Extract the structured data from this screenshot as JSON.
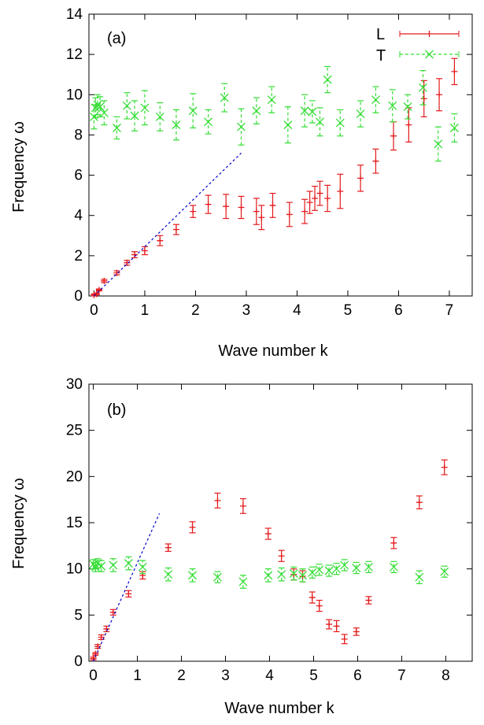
{
  "chart_data": [
    {
      "type": "scatter",
      "panel_label": "(a)",
      "xlabel": "Wave number k",
      "ylabel": "Frequency ω",
      "xlim": [
        -0.1,
        7.45
      ],
      "ylim": [
        0,
        14
      ],
      "xticks": [
        0,
        1,
        2,
        3,
        4,
        5,
        6,
        7
      ],
      "yticks": [
        0,
        2,
        4,
        6,
        8,
        10,
        12,
        14
      ],
      "grid": false,
      "legend_position": "top-right",
      "series": [
        {
          "name": "L",
          "color": "#e41a1c",
          "marker": "plus",
          "errorbars": true,
          "points": [
            {
              "x": 0.0,
              "y": 0.05,
              "err": 0.05
            },
            {
              "x": 0.05,
              "y": 0.1,
              "err": 0.05
            },
            {
              "x": 0.1,
              "y": 0.3,
              "err": 0.05
            },
            {
              "x": 0.2,
              "y": 0.75,
              "err": 0.08
            },
            {
              "x": 0.45,
              "y": 1.15,
              "err": 0.1
            },
            {
              "x": 0.65,
              "y": 1.65,
              "err": 0.12
            },
            {
              "x": 0.8,
              "y": 2.05,
              "err": 0.15
            },
            {
              "x": 1.0,
              "y": 2.25,
              "err": 0.2
            },
            {
              "x": 1.3,
              "y": 2.75,
              "err": 0.25
            },
            {
              "x": 1.62,
              "y": 3.3,
              "err": 0.25
            },
            {
              "x": 1.95,
              "y": 4.2,
              "err": 0.3
            },
            {
              "x": 2.25,
              "y": 4.55,
              "err": 0.45
            },
            {
              "x": 2.6,
              "y": 4.45,
              "err": 0.6
            },
            {
              "x": 2.9,
              "y": 4.4,
              "err": 0.55
            },
            {
              "x": 3.2,
              "y": 4.2,
              "err": 0.65
            },
            {
              "x": 3.3,
              "y": 3.9,
              "err": 0.6
            },
            {
              "x": 3.52,
              "y": 4.5,
              "err": 0.6
            },
            {
              "x": 3.85,
              "y": 4.05,
              "err": 0.6
            },
            {
              "x": 4.15,
              "y": 4.2,
              "err": 0.6
            },
            {
              "x": 4.25,
              "y": 4.65,
              "err": 0.55
            },
            {
              "x": 4.35,
              "y": 4.85,
              "err": 0.6
            },
            {
              "x": 4.45,
              "y": 5.1,
              "err": 0.6
            },
            {
              "x": 4.6,
              "y": 4.85,
              "err": 0.65
            },
            {
              "x": 4.85,
              "y": 5.2,
              "err": 0.85
            },
            {
              "x": 5.25,
              "y": 5.85,
              "err": 0.65
            },
            {
              "x": 5.55,
              "y": 6.7,
              "err": 0.6
            },
            {
              "x": 5.9,
              "y": 7.95,
              "err": 0.7
            },
            {
              "x": 6.2,
              "y": 8.5,
              "err": 0.85
            },
            {
              "x": 6.5,
              "y": 9.8,
              "err": 0.9
            },
            {
              "x": 6.8,
              "y": 10.0,
              "err": 0.8
            },
            {
              "x": 7.1,
              "y": 11.15,
              "err": 0.65
            }
          ]
        },
        {
          "name": "T",
          "color": "#33dd33",
          "marker": "cross",
          "errorbars": true,
          "points": [
            {
              "x": 0.0,
              "y": 8.9,
              "err": 0.6
            },
            {
              "x": 0.03,
              "y": 9.35,
              "err": 0.5
            },
            {
              "x": 0.07,
              "y": 9.5,
              "err": 0.5
            },
            {
              "x": 0.12,
              "y": 9.4,
              "err": 0.5
            },
            {
              "x": 0.2,
              "y": 9.1,
              "err": 0.6
            },
            {
              "x": 0.45,
              "y": 8.35,
              "err": 0.55
            },
            {
              "x": 0.65,
              "y": 9.45,
              "err": 0.65
            },
            {
              "x": 0.8,
              "y": 8.95,
              "err": 0.75
            },
            {
              "x": 1.0,
              "y": 9.35,
              "err": 0.85
            },
            {
              "x": 1.3,
              "y": 8.9,
              "err": 0.7
            },
            {
              "x": 1.62,
              "y": 8.5,
              "err": 0.75
            },
            {
              "x": 1.95,
              "y": 9.2,
              "err": 0.85
            },
            {
              "x": 2.25,
              "y": 8.65,
              "err": 0.6
            },
            {
              "x": 2.57,
              "y": 9.85,
              "err": 0.7
            },
            {
              "x": 2.9,
              "y": 8.4,
              "err": 0.9
            },
            {
              "x": 3.2,
              "y": 9.2,
              "err": 0.65
            },
            {
              "x": 3.5,
              "y": 9.75,
              "err": 0.65
            },
            {
              "x": 3.82,
              "y": 8.5,
              "err": 0.9
            },
            {
              "x": 4.15,
              "y": 9.2,
              "err": 0.8
            },
            {
              "x": 4.3,
              "y": 9.15,
              "err": 0.55
            },
            {
              "x": 4.45,
              "y": 8.65,
              "err": 0.7
            },
            {
              "x": 4.6,
              "y": 10.75,
              "err": 0.65
            },
            {
              "x": 4.85,
              "y": 8.6,
              "err": 0.65
            },
            {
              "x": 5.25,
              "y": 9.05,
              "err": 0.65
            },
            {
              "x": 5.55,
              "y": 9.75,
              "err": 0.65
            },
            {
              "x": 5.88,
              "y": 9.45,
              "err": 0.8
            },
            {
              "x": 6.18,
              "y": 9.4,
              "err": 0.6
            },
            {
              "x": 6.48,
              "y": 10.35,
              "err": 0.85
            },
            {
              "x": 6.78,
              "y": 7.55,
              "err": 0.85
            },
            {
              "x": 7.1,
              "y": 8.35,
              "err": 0.7
            }
          ]
        },
        {
          "color": "#0000cc",
          "type": "dashed-line",
          "points": [
            {
              "x": 0.0,
              "y": 0.0
            },
            {
              "x": 2.9,
              "y": 7.1
            }
          ]
        }
      ]
    },
    {
      "type": "scatter",
      "panel_label": "(b)",
      "xlabel": "Wave number k",
      "ylabel": "Frequency ω",
      "xlim": [
        -0.1,
        8.6
      ],
      "ylim": [
        0,
        30
      ],
      "xticks": [
        0,
        1,
        2,
        3,
        4,
        5,
        6,
        7,
        8
      ],
      "yticks": [
        0,
        5,
        10,
        15,
        20,
        25,
        30
      ],
      "grid": false,
      "series": [
        {
          "name": "L",
          "color": "#e41a1c",
          "marker": "plus",
          "errorbars": true,
          "points": [
            {
              "x": 0.0,
              "y": 0.3,
              "err": 0.15
            },
            {
              "x": 0.05,
              "y": 0.8,
              "err": 0.15
            },
            {
              "x": 0.1,
              "y": 1.6,
              "err": 0.2
            },
            {
              "x": 0.18,
              "y": 2.6,
              "err": 0.25
            },
            {
              "x": 0.3,
              "y": 3.5,
              "err": 0.3
            },
            {
              "x": 0.45,
              "y": 5.3,
              "err": 0.3
            },
            {
              "x": 0.8,
              "y": 7.3,
              "err": 0.35
            },
            {
              "x": 1.12,
              "y": 9.3,
              "err": 0.4
            },
            {
              "x": 1.7,
              "y": 12.3,
              "err": 0.4
            },
            {
              "x": 2.25,
              "y": 14.5,
              "err": 0.6
            },
            {
              "x": 2.82,
              "y": 17.4,
              "err": 0.8
            },
            {
              "x": 3.4,
              "y": 16.8,
              "err": 0.8
            },
            {
              "x": 3.97,
              "y": 13.8,
              "err": 0.6
            },
            {
              "x": 4.27,
              "y": 11.4,
              "err": 0.6
            },
            {
              "x": 4.55,
              "y": 9.4,
              "err": 0.6
            },
            {
              "x": 4.75,
              "y": 9.2,
              "err": 0.6
            },
            {
              "x": 4.97,
              "y": 6.9,
              "err": 0.6
            },
            {
              "x": 5.13,
              "y": 6.0,
              "err": 0.6
            },
            {
              "x": 5.35,
              "y": 4.0,
              "err": 0.5
            },
            {
              "x": 5.52,
              "y": 3.8,
              "err": 0.6
            },
            {
              "x": 5.7,
              "y": 2.4,
              "err": 0.5
            },
            {
              "x": 5.97,
              "y": 3.2,
              "err": 0.4
            },
            {
              "x": 6.25,
              "y": 6.6,
              "err": 0.4
            },
            {
              "x": 6.82,
              "y": 12.8,
              "err": 0.6
            },
            {
              "x": 7.4,
              "y": 17.2,
              "err": 0.7
            },
            {
              "x": 7.97,
              "y": 21.0,
              "err": 0.8
            }
          ]
        },
        {
          "name": "T",
          "color": "#33dd33",
          "marker": "cross",
          "errorbars": true,
          "points": [
            {
              "x": 0.0,
              "y": 10.5,
              "err": 0.5
            },
            {
              "x": 0.05,
              "y": 10.2,
              "err": 0.5
            },
            {
              "x": 0.1,
              "y": 10.6,
              "err": 0.5
            },
            {
              "x": 0.18,
              "y": 10.3,
              "err": 0.6
            },
            {
              "x": 0.45,
              "y": 10.4,
              "err": 0.7
            },
            {
              "x": 0.8,
              "y": 10.6,
              "err": 0.7
            },
            {
              "x": 1.12,
              "y": 10.2,
              "err": 0.7
            },
            {
              "x": 1.7,
              "y": 9.4,
              "err": 0.7
            },
            {
              "x": 2.25,
              "y": 9.3,
              "err": 0.7
            },
            {
              "x": 2.82,
              "y": 9.1,
              "err": 0.6
            },
            {
              "x": 3.4,
              "y": 8.6,
              "err": 0.7
            },
            {
              "x": 3.97,
              "y": 9.3,
              "err": 0.7
            },
            {
              "x": 4.27,
              "y": 9.4,
              "err": 0.7
            },
            {
              "x": 4.55,
              "y": 9.5,
              "err": 0.7
            },
            {
              "x": 4.75,
              "y": 9.3,
              "err": 0.7
            },
            {
              "x": 4.97,
              "y": 9.6,
              "err": 0.6
            },
            {
              "x": 5.13,
              "y": 9.9,
              "err": 0.6
            },
            {
              "x": 5.35,
              "y": 9.8,
              "err": 0.6
            },
            {
              "x": 5.52,
              "y": 10.0,
              "err": 0.6
            },
            {
              "x": 5.7,
              "y": 10.4,
              "err": 0.6
            },
            {
              "x": 5.97,
              "y": 10.1,
              "err": 0.6
            },
            {
              "x": 6.25,
              "y": 10.2,
              "err": 0.6
            },
            {
              "x": 6.82,
              "y": 10.2,
              "err": 0.6
            },
            {
              "x": 7.4,
              "y": 9.1,
              "err": 0.7
            },
            {
              "x": 7.97,
              "y": 9.7,
              "err": 0.6
            }
          ]
        },
        {
          "color": "#0000cc",
          "type": "dashed-line",
          "points": [
            {
              "x": 0.0,
              "y": 0.0
            },
            {
              "x": 1.5,
              "y": 16.0
            }
          ]
        }
      ]
    }
  ]
}
